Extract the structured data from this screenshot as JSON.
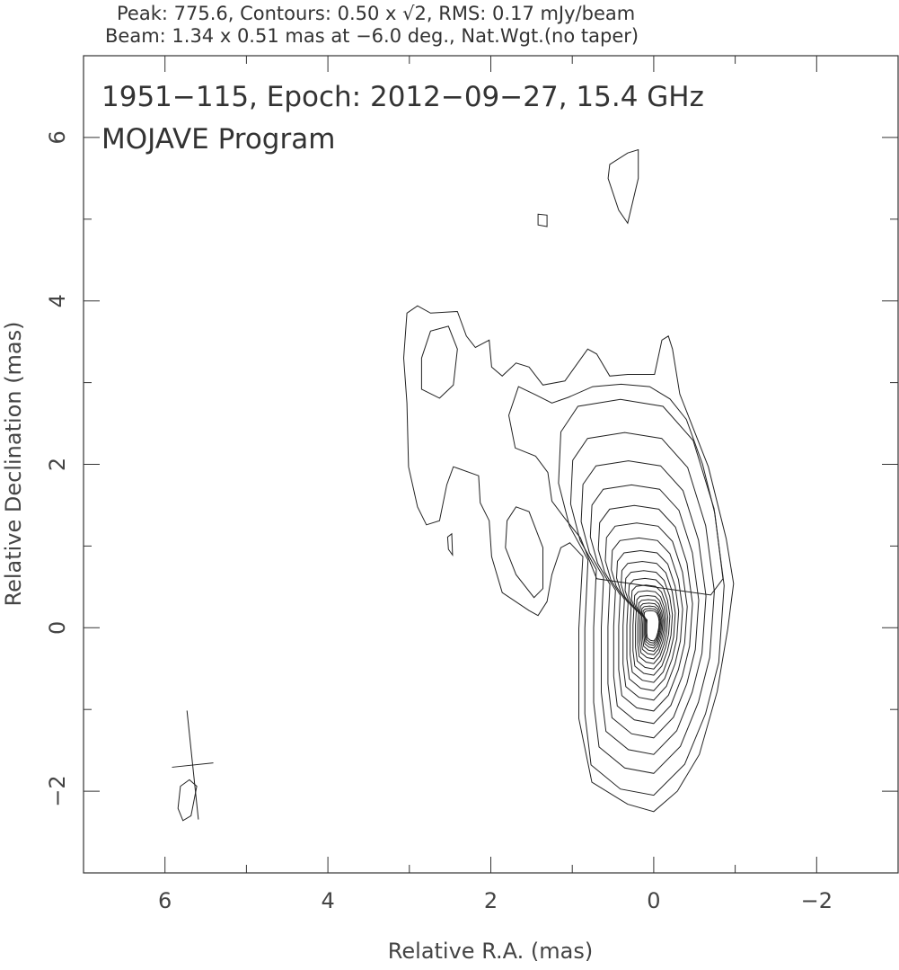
{
  "chart_data": {
    "type": "contour",
    "header": [
      "Peak: 775.6, Contours: 0.50 x √2, RMS: 0.17 mJy/beam",
      "Beam: 1.34 x 0.51 mas at −6.0 deg., Nat.Wgt.(no taper)"
    ],
    "title_lines": [
      "1951−115, Epoch: 2012−09−27, 15.4 GHz",
      "MOJAVE Program"
    ],
    "xlabel": "Relative R.A. (mas)",
    "ylabel": "Relative Declination (mas)",
    "xlim": [
      7,
      -3
    ],
    "ylim": [
      -3,
      7
    ],
    "xticks": [
      {
        "v": 6,
        "label": "6"
      },
      {
        "v": 4,
        "label": "4"
      },
      {
        "v": 2,
        "label": "2"
      },
      {
        "v": 0,
        "label": "0"
      },
      {
        "v": -2,
        "label": "−2"
      }
    ],
    "yticks": [
      {
        "v": -2,
        "label": "−2"
      },
      {
        "v": 0,
        "label": "0"
      },
      {
        "v": 2,
        "label": "2"
      },
      {
        "v": 4,
        "label": "4"
      },
      {
        "v": 6,
        "label": "6"
      }
    ],
    "peak_mJy_per_beam": 775.6,
    "base_contour_mJy": 0.5,
    "contour_factor": 1.414,
    "rms_mJy_per_beam": 0.17,
    "beam": {
      "major_mas": 1.34,
      "minor_mas": 0.51,
      "pa_deg": -6.0,
      "center": [
        5.66,
        -1.68
      ]
    },
    "core": {
      "peak": [
        0.0,
        0.05
      ],
      "n_levels": 19,
      "envelope": [
        [
          1.2,
          2.52
        ],
        [
          0.98,
          2.85
        ],
        [
          0.43,
          2.94
        ],
        [
          -0.12,
          2.85
        ],
        [
          -0.51,
          2.41
        ],
        [
          -0.78,
          1.53
        ],
        [
          -0.91,
          0.54
        ],
        [
          -0.84,
          -0.45
        ],
        [
          -0.67,
          -1.11
        ],
        [
          -0.4,
          -1.76
        ],
        [
          0,
          -2.16
        ],
        [
          0.43,
          -2.08
        ],
        [
          0.81,
          -1.77
        ],
        [
          0.89,
          -1.11
        ],
        [
          0.89,
          -0.01
        ],
        [
          0.85,
          0.87
        ],
        [
          1.09,
          1.31
        ],
        [
          1.23,
          1.86
        ]
      ]
    },
    "contours": [
      [
        [
          3.03,
          3.85
        ],
        [
          2.9,
          3.94
        ],
        [
          2.74,
          3.85
        ],
        [
          2.41,
          3.87
        ],
        [
          2.3,
          3.57
        ],
        [
          2.19,
          3.43
        ],
        [
          2.02,
          3.52
        ],
        [
          1.99,
          3.19
        ],
        [
          1.86,
          3.08
        ],
        [
          1.69,
          3.24
        ],
        [
          1.53,
          3.19
        ],
        [
          1.36,
          2.97
        ],
        [
          1.09,
          3.02
        ],
        [
          0.81,
          3.41
        ],
        [
          0.7,
          3.35
        ],
        [
          0.54,
          3.08
        ],
        [
          0.32,
          3.1
        ],
        [
          -0.01,
          3.1
        ],
        [
          -0.1,
          3.52
        ],
        [
          -0.18,
          3.57
        ],
        [
          -0.23,
          3.41
        ],
        [
          -0.32,
          2.86
        ],
        [
          -0.67,
          1.97
        ],
        [
          -0.89,
          1.09
        ],
        [
          -0.98,
          0.54
        ],
        [
          -0.91,
          -0.01
        ],
        [
          -0.78,
          -0.78
        ],
        [
          -0.56,
          -1.55
        ],
        [
          -0.29,
          -2.0
        ],
        [
          0,
          -2.25
        ],
        [
          0.32,
          -2.16
        ],
        [
          0.76,
          -1.89
        ],
        [
          0.92,
          -1.11
        ],
        [
          0.92,
          -0.01
        ],
        [
          0.87,
          0.87
        ],
        [
          1.03,
          1.04
        ],
        [
          1.14,
          0.98
        ],
        [
          1.25,
          0.65
        ],
        [
          1.31,
          0.32
        ],
        [
          1.42,
          0.15
        ],
        [
          1.53,
          0.21
        ],
        [
          1.86,
          0.43
        ],
        [
          1.99,
          0.87
        ],
        [
          2.02,
          1.31
        ],
        [
          2.13,
          1.53
        ],
        [
          2.15,
          1.86
        ],
        [
          2.46,
          1.97
        ],
        [
          2.54,
          1.75
        ],
        [
          2.63,
          1.31
        ],
        [
          2.79,
          1.26
        ],
        [
          2.9,
          1.48
        ],
        [
          3.01,
          1.97
        ],
        [
          3.03,
          2.75
        ],
        [
          3.07,
          3.3
        ]
      ],
      [
        [
          2.85,
          3.3
        ],
        [
          2.74,
          3.63
        ],
        [
          2.52,
          3.69
        ],
        [
          2.41,
          3.41
        ],
        [
          2.46,
          2.97
        ],
        [
          2.63,
          2.81
        ],
        [
          2.85,
          2.92
        ]
      ],
      [
        [
          1.8,
          1.31
        ],
        [
          1.69,
          1.48
        ],
        [
          1.53,
          1.42
        ],
        [
          1.36,
          0.98
        ],
        [
          1.36,
          0.48
        ],
        [
          1.47,
          0.37
        ],
        [
          1.69,
          0.65
        ],
        [
          1.82,
          0.98
        ]
      ],
      [
        [
          1.78,
          2.6
        ],
        [
          1.66,
          2.95
        ],
        [
          1.45,
          2.85
        ],
        [
          1.25,
          2.75
        ],
        [
          1.05,
          2.82
        ],
        [
          0.75,
          2.95
        ],
        [
          0.4,
          2.98
        ],
        [
          0.05,
          2.95
        ],
        [
          -0.2,
          2.8
        ],
        [
          -0.4,
          2.55
        ],
        [
          -0.6,
          2.0
        ],
        [
          -0.75,
          1.4
        ],
        [
          -0.85,
          0.6
        ],
        [
          -0.7,
          0.4
        ],
        [
          0.7,
          0.6
        ],
        [
          0.9,
          1.1
        ],
        [
          1.1,
          1.35
        ],
        [
          1.25,
          1.55
        ],
        [
          1.3,
          1.9
        ],
        [
          1.45,
          2.1
        ],
        [
          1.7,
          2.2
        ]
      ],
      [
        [
          0.54,
          5.67
        ],
        [
          0.32,
          5.81
        ],
        [
          0.19,
          5.85
        ],
        [
          0.19,
          5.5
        ],
        [
          0.32,
          4.95
        ],
        [
          0.43,
          5.11
        ],
        [
          0.56,
          5.5
        ]
      ],
      [
        [
          1.42,
          5.06
        ],
        [
          1.31,
          5.05
        ],
        [
          1.31,
          4.91
        ],
        [
          1.42,
          4.93
        ]
      ],
      [
        [
          2.53,
          1.11
        ],
        [
          2.48,
          1.15
        ],
        [
          2.47,
          0.89
        ],
        [
          2.52,
          0.96
        ]
      ],
      [
        [
          5.81,
          -1.94
        ],
        [
          5.7,
          -1.86
        ],
        [
          5.61,
          -1.94
        ],
        [
          5.68,
          -2.3
        ],
        [
          5.78,
          -2.36
        ],
        [
          5.84,
          -2.21
        ]
      ]
    ]
  }
}
